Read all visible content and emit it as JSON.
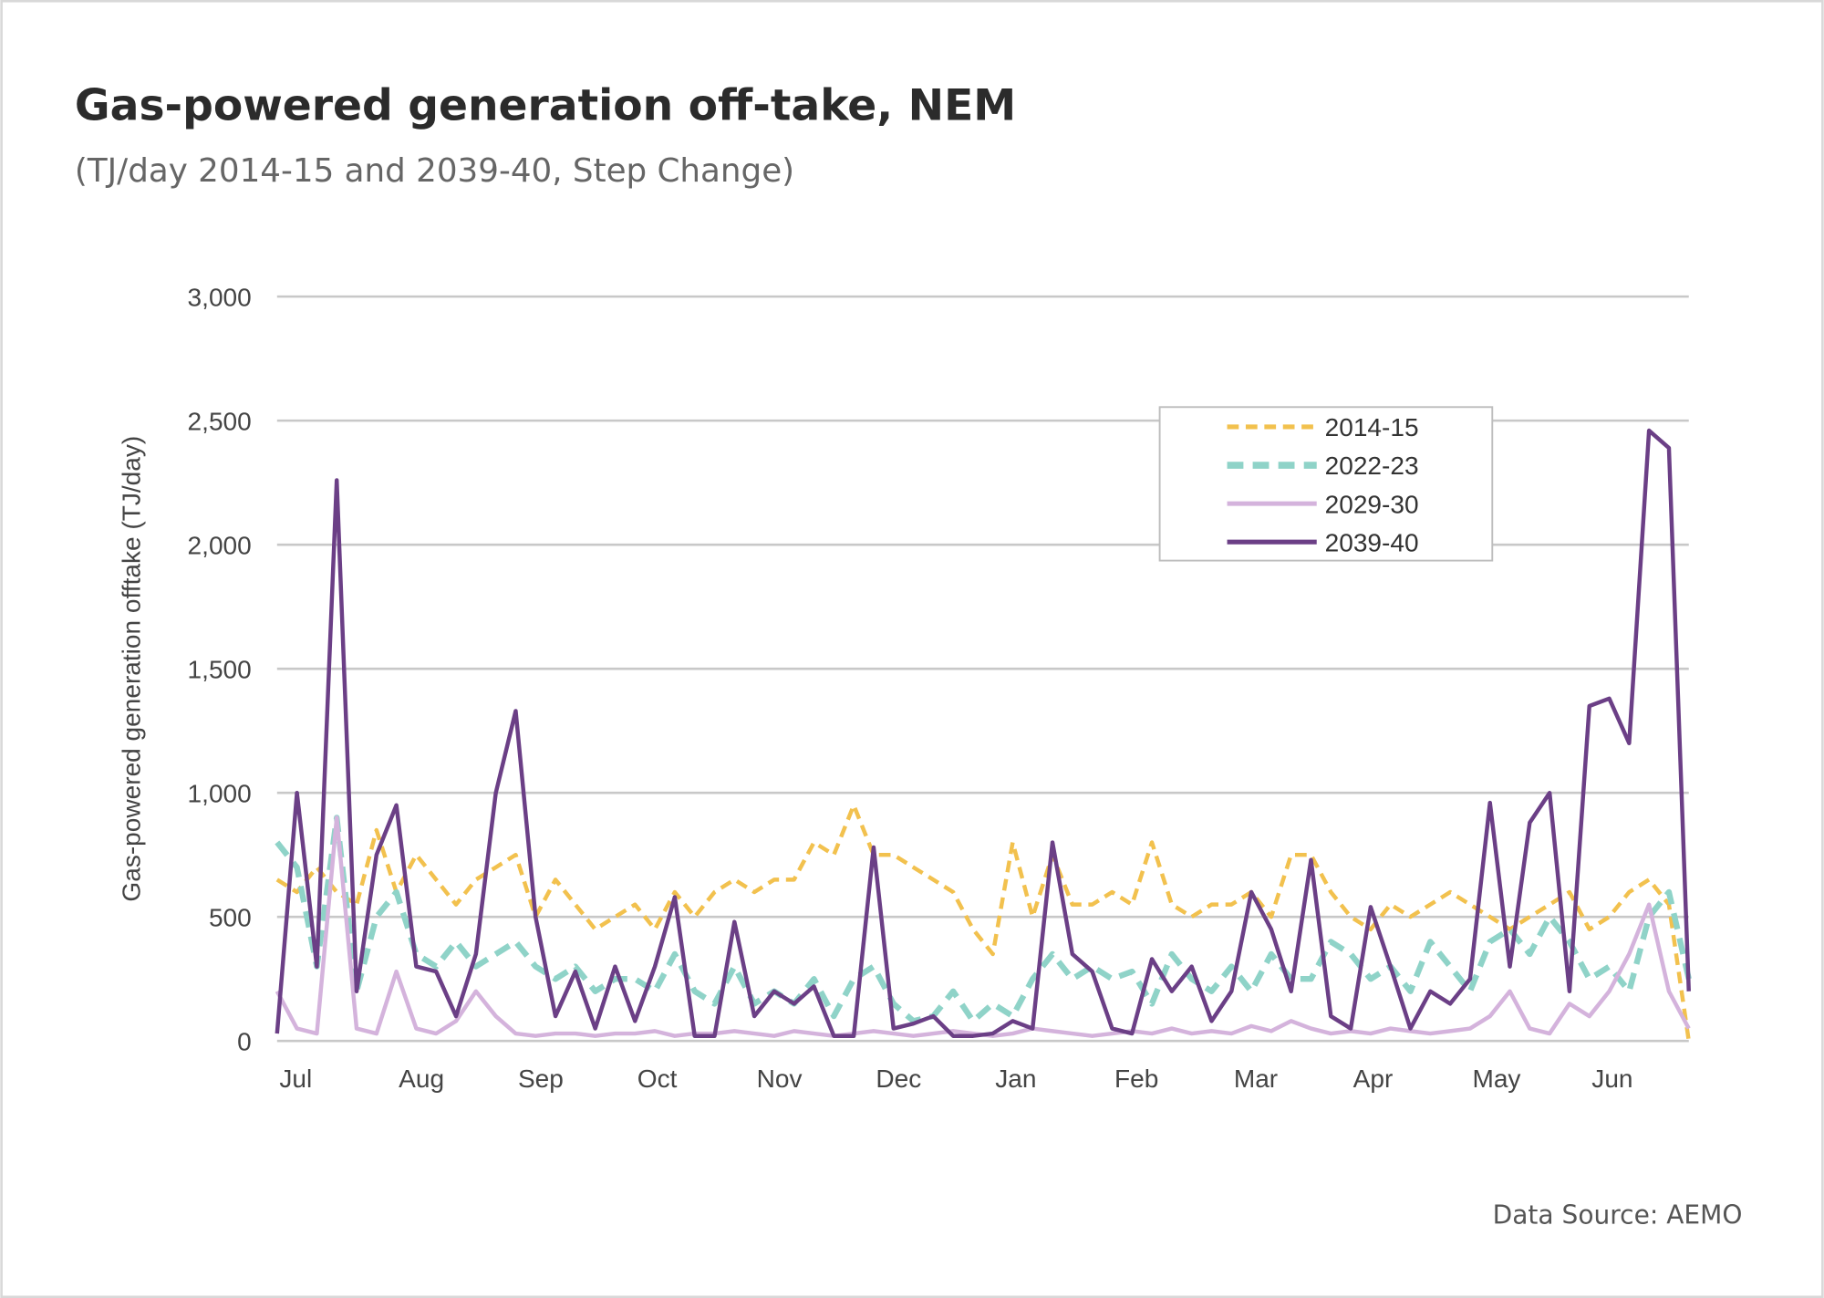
{
  "chart_data": {
    "type": "line",
    "title": "Gas-powered generation off-take, NEM",
    "subtitle": "(TJ/day 2014-15 and 2039-40, Step Change)",
    "y_label": "Gas-powered generation offtake (TJ/day)",
    "source": "Data Source: AEMO",
    "categories": [
      "Jul",
      null,
      null,
      null,
      null,
      null,
      "Aug",
      null,
      null,
      null,
      null,
      null,
      "Sep",
      null,
      null,
      null,
      null,
      null,
      "Oct",
      null,
      null,
      null,
      null,
      null,
      "Nov",
      null,
      null,
      null,
      null,
      null,
      "Dec",
      null,
      null,
      null,
      null,
      null,
      "Jan",
      null,
      null,
      null,
      null,
      null,
      "Feb",
      null,
      null,
      null,
      null,
      null,
      "Mar",
      null,
      null,
      null,
      null,
      null,
      "Apr",
      null,
      null,
      null,
      null,
      null,
      "May",
      null,
      null,
      null,
      null,
      null,
      "Jun",
      null,
      null,
      null,
      null,
      null
    ],
    "series": [
      {
        "name": "2014-15",
        "color": "#f2c14e",
        "dashed": true,
        "values": [
          650,
          600,
          700,
          600,
          550,
          850,
          600,
          750,
          650,
          550,
          650,
          700,
          750,
          500,
          650,
          550,
          450,
          500,
          550,
          450,
          600,
          500,
          600,
          650,
          600,
          650,
          650,
          800,
          750,
          950,
          750,
          750,
          700,
          650,
          600,
          450,
          350,
          800,
          500,
          750,
          550,
          550,
          600,
          550,
          800,
          550,
          500,
          550,
          550,
          600,
          500,
          750,
          750,
          600,
          500,
          450,
          550,
          500,
          550,
          600,
          550,
          500,
          450,
          500,
          550,
          600,
          450,
          500,
          600,
          650,
          550,
          0
        ]
      },
      {
        "name": "2022-23",
        "color": "#8fd3c8",
        "dashed": true,
        "values": [
          800,
          700,
          300,
          900,
          200,
          500,
          600,
          350,
          300,
          400,
          300,
          350,
          400,
          300,
          250,
          300,
          200,
          250,
          250,
          200,
          350,
          200,
          150,
          300,
          150,
          200,
          150,
          250,
          100,
          250,
          300,
          150,
          80,
          100,
          200,
          80,
          150,
          100,
          250,
          350,
          250,
          300,
          250,
          280,
          150,
          350,
          250,
          200,
          300,
          200,
          350,
          250,
          250,
          400,
          350,
          250,
          300,
          200,
          400,
          300,
          200,
          400,
          450,
          350,
          500,
          400,
          250,
          300,
          200,
          500,
          600,
          250
        ]
      },
      {
        "name": "2029-30",
        "color": "#d4b3dc",
        "dashed": false,
        "values": [
          200,
          50,
          30,
          900,
          50,
          30,
          280,
          50,
          30,
          80,
          200,
          100,
          30,
          20,
          30,
          30,
          20,
          30,
          30,
          40,
          20,
          30,
          30,
          40,
          30,
          20,
          40,
          30,
          20,
          30,
          40,
          30,
          20,
          30,
          40,
          30,
          20,
          30,
          50,
          40,
          30,
          20,
          30,
          40,
          30,
          50,
          30,
          40,
          30,
          60,
          40,
          80,
          50,
          30,
          40,
          30,
          50,
          40,
          30,
          40,
          50,
          100,
          200,
          50,
          30,
          150,
          100,
          200,
          350,
          550,
          200,
          50
        ]
      },
      {
        "name": "2039-40",
        "color": "#6b3f86",
        "dashed": false,
        "values": [
          30,
          1000,
          300,
          2260,
          200,
          750,
          950,
          300,
          280,
          100,
          350,
          1000,
          1330,
          500,
          100,
          280,
          50,
          300,
          80,
          300,
          580,
          20,
          20,
          480,
          100,
          200,
          150,
          220,
          20,
          20,
          780,
          50,
          70,
          100,
          20,
          20,
          30,
          80,
          50,
          800,
          350,
          280,
          50,
          30,
          330,
          200,
          300,
          80,
          200,
          600,
          450,
          200,
          730,
          100,
          50,
          540,
          300,
          50,
          200,
          150,
          250,
          960,
          300,
          880,
          1000,
          200,
          1350,
          1380,
          1200,
          2460,
          2390,
          200
        ]
      }
    ],
    "ylim": [
      0,
      3000
    ],
    "yticks": [
      0,
      500,
      {
        "value": 1000,
        "label": "1,000"
      },
      {
        "value": 1500,
        "label": "1,500"
      },
      {
        "value": 2000,
        "label": "2,000"
      },
      {
        "value": 2500,
        "label": "2,500"
      },
      {
        "value": 3000,
        "label": "3,000"
      }
    ],
    "grid": true,
    "legend": "upper right"
  }
}
